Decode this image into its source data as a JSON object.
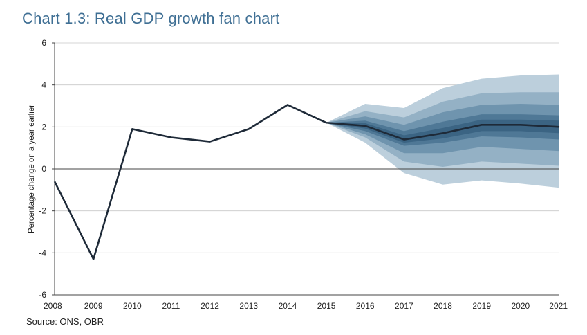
{
  "title": "Chart 1.3: Real GDP growth fan chart",
  "source": "Source: ONS, OBR",
  "chart_data": {
    "type": "line",
    "title": "Chart 1.3: Real GDP growth fan chart",
    "xlabel": "",
    "ylabel": "Percentage change on a year earlier",
    "xlim": [
      2008,
      2021
    ],
    "ylim": [
      -6,
      6
    ],
    "x_ticks": [
      "2008",
      "2009",
      "2010",
      "2011",
      "2012",
      "2013",
      "2014",
      "2015",
      "2016",
      "2017",
      "2018",
      "2019",
      "2020",
      "2021"
    ],
    "y_ticks": [
      "6",
      "4",
      "2",
      "0",
      "-2",
      "-4",
      "-6"
    ],
    "grid": "horizontal",
    "series": [
      {
        "x": [
          2008,
          2009,
          2010,
          2011,
          2012,
          2013,
          2014,
          2015,
          2016,
          2017,
          2018,
          2019,
          2020,
          2021
        ],
        "values": [
          -0.6,
          -4.3,
          1.9,
          1.5,
          1.3,
          1.9,
          3.05,
          2.2,
          2.05,
          1.4,
          1.7,
          2.1,
          2.1,
          2.0
        ]
      }
    ],
    "fan": {
      "x": [
        2015,
        2016,
        2017,
        2018,
        2019,
        2020,
        2021
      ],
      "bands": [
        {
          "lower": [
            2.2,
            1.25,
            -0.2,
            -0.75,
            -0.55,
            -0.7,
            -0.9
          ],
          "upper": [
            2.2,
            3.1,
            2.9,
            3.85,
            4.3,
            4.45,
            4.5
          ],
          "color": "#bccfdc"
        },
        {
          "lower": [
            2.2,
            1.5,
            0.35,
            0.1,
            0.35,
            0.25,
            0.15
          ],
          "upper": [
            2.2,
            2.75,
            2.45,
            3.2,
            3.6,
            3.65,
            3.65
          ],
          "color": "#94b1c5"
        },
        {
          "lower": [
            2.2,
            1.65,
            0.75,
            0.75,
            1.05,
            0.95,
            0.85
          ],
          "upper": [
            2.2,
            2.5,
            2.1,
            2.7,
            3.05,
            3.1,
            3.05
          ],
          "color": "#6f94ae"
        },
        {
          "lower": [
            2.2,
            1.8,
            1.1,
            1.25,
            1.55,
            1.5,
            1.4
          ],
          "upper": [
            2.2,
            2.3,
            1.8,
            2.25,
            2.6,
            2.6,
            2.55
          ],
          "color": "#4f7896"
        },
        {
          "lower": [
            2.2,
            1.92,
            1.25,
            1.45,
            1.8,
            1.8,
            1.7
          ],
          "upper": [
            2.2,
            2.18,
            1.6,
            1.95,
            2.35,
            2.35,
            2.3
          ],
          "color": "#3b6483"
        }
      ]
    },
    "colors": {
      "line": "#1e2a38",
      "grid": "#c8c8c8",
      "title": "#3f6f94"
    }
  }
}
